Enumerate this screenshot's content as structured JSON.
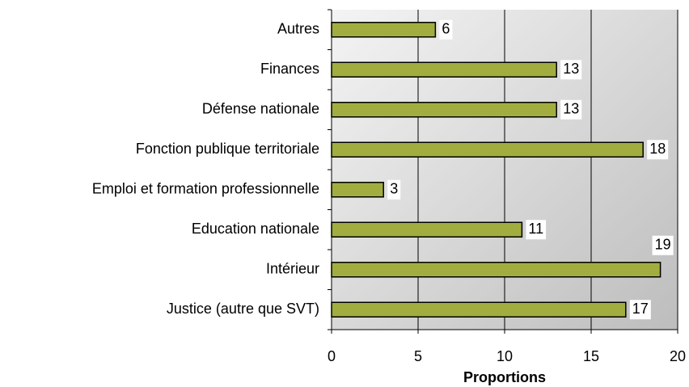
{
  "chart_data": {
    "type": "bar",
    "orientation": "horizontal",
    "categories": [
      "Autres",
      "Finances",
      "Défense nationale",
      "Fonction publique territoriale",
      "Emploi et formation professionnelle",
      "Education nationale",
      "Intérieur",
      "Justice (autre que SVT)"
    ],
    "values": [
      6,
      13,
      13,
      18,
      3,
      11,
      19,
      17
    ],
    "color": "#a2ad40",
    "x_label": "Proportions",
    "xlim": [
      0,
      20
    ],
    "xticks": [
      0,
      5,
      10,
      15,
      20
    ],
    "grid": true
  }
}
